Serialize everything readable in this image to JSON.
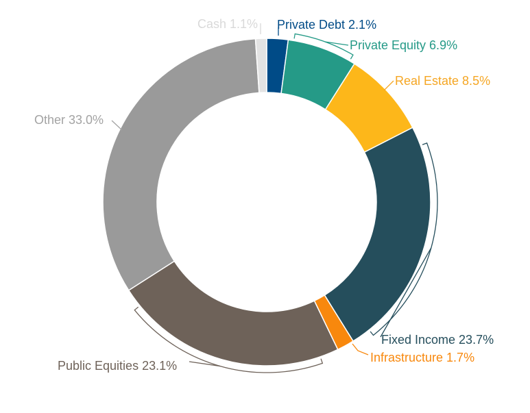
{
  "chart_data": {
    "type": "pie",
    "variant": "donut",
    "start_angle": "top",
    "direction": "clockwise",
    "title": "",
    "slices": [
      {
        "name": "Private Debt",
        "value": 2.1,
        "label": "Private Debt 2.1%",
        "color": "#004b87",
        "label_color": "#004b87"
      },
      {
        "name": "Private Equity",
        "value": 6.9,
        "label": "Private Equity 6.9%",
        "color": "#259a87",
        "label_color": "#259a87"
      },
      {
        "name": "Real Estate",
        "value": 8.5,
        "label": "Real Estate 8.5%",
        "color": "#fdb71a",
        "label_color": "#f5a623"
      },
      {
        "name": "Fixed Income",
        "value": 23.7,
        "label": "Fixed Income 23.7%",
        "color": "#254e5c",
        "label_color": "#254e5c"
      },
      {
        "name": "Infrastructure",
        "value": 1.7,
        "label": "Infrastructure 1.7%",
        "color": "#f8880d",
        "label_color": "#f8880d"
      },
      {
        "name": "Public Equities",
        "value": 23.1,
        "label": "Public Equities 23.1%",
        "color": "#6e6259",
        "label_color": "#6e6259"
      },
      {
        "name": "Other",
        "value": 33.0,
        "label": "Other 33.0%",
        "color": "#9a9a9a",
        "label_color": "#a3a3a3"
      },
      {
        "name": "Cash",
        "value": 1.1,
        "label": "Cash 1.1%",
        "color": "#e3e3e3",
        "label_color": "#d9d9d9"
      }
    ]
  }
}
